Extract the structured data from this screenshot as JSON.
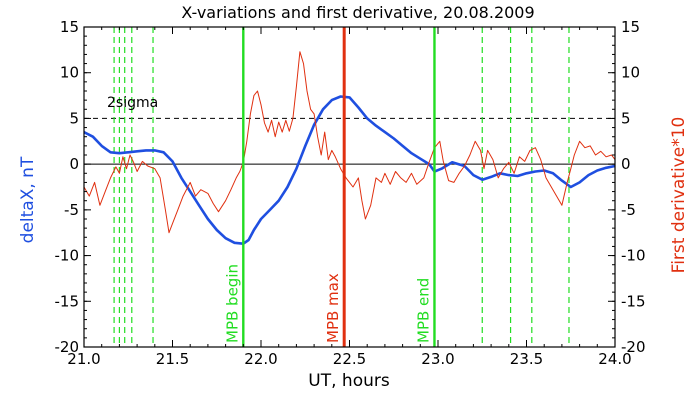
{
  "chart_data": {
    "type": "line",
    "title": "X-variations and first derivative, 20.08.2009",
    "xlabel": "UT, hours",
    "ylabel_left": "deltaX, nT",
    "ylabel_right": "First derivative*10",
    "xlim": [
      21.0,
      24.0
    ],
    "ylim_left": [
      -20,
      15
    ],
    "ylim_right": [
      -20,
      15
    ],
    "x_ticks": [
      "21.0",
      "21.5",
      "22.0",
      "22.5",
      "23.0",
      "23.5",
      "24.0"
    ],
    "y_ticks": [
      "15",
      "10",
      "5",
      "0",
      "-5",
      "-10",
      "-15",
      "-20"
    ],
    "colors": {
      "deltaX": "#1f4fe0",
      "derivative": "#e03010",
      "mpb": "#22dd22",
      "max": "#e03010",
      "axis": "#000000"
    },
    "sigma_label": "2sigma",
    "sigma_level": 5,
    "zero_level": 0,
    "vertical_markers": [
      {
        "x": 21.9,
        "label": "MPB begin",
        "color": "#22dd22"
      },
      {
        "x": 22.47,
        "label": "MPB max",
        "color": "#e03010"
      },
      {
        "x": 22.98,
        "label": "MPB end",
        "color": "#22dd22"
      }
    ],
    "dashed_markers": [
      21.17,
      21.2,
      21.23,
      21.27,
      21.39,
      23.25,
      23.41,
      23.53,
      23.74
    ],
    "series": [
      {
        "name": "deltaX, nT",
        "axis": "left",
        "points": [
          [
            21.0,
            3.5
          ],
          [
            21.05,
            3.0
          ],
          [
            21.1,
            2.0
          ],
          [
            21.15,
            1.3
          ],
          [
            21.2,
            1.2
          ],
          [
            21.25,
            1.3
          ],
          [
            21.3,
            1.4
          ],
          [
            21.35,
            1.5
          ],
          [
            21.4,
            1.5
          ],
          [
            21.45,
            1.3
          ],
          [
            21.5,
            0.3
          ],
          [
            21.55,
            -1.5
          ],
          [
            21.6,
            -3.0
          ],
          [
            21.65,
            -4.5
          ],
          [
            21.7,
            -6.0
          ],
          [
            21.75,
            -7.2
          ],
          [
            21.8,
            -8.1
          ],
          [
            21.85,
            -8.6
          ],
          [
            21.9,
            -8.7
          ],
          [
            21.93,
            -8.3
          ],
          [
            21.96,
            -7.2
          ],
          [
            22.0,
            -6.0
          ],
          [
            22.05,
            -5.0
          ],
          [
            22.1,
            -4.0
          ],
          [
            22.15,
            -2.5
          ],
          [
            22.2,
            -0.5
          ],
          [
            22.25,
            2.0
          ],
          [
            22.3,
            4.3
          ],
          [
            22.35,
            6.0
          ],
          [
            22.4,
            7.0
          ],
          [
            22.45,
            7.4
          ],
          [
            22.5,
            7.3
          ],
          [
            22.55,
            6.2
          ],
          [
            22.6,
            5.0
          ],
          [
            22.65,
            4.2
          ],
          [
            22.7,
            3.5
          ],
          [
            22.75,
            2.8
          ],
          [
            22.8,
            2.0
          ],
          [
            22.85,
            1.2
          ],
          [
            22.9,
            0.6
          ],
          [
            22.95,
            0.0
          ],
          [
            22.98,
            -0.8
          ],
          [
            23.02,
            -0.5
          ],
          [
            23.08,
            0.2
          ],
          [
            23.15,
            -0.2
          ],
          [
            23.2,
            -1.2
          ],
          [
            23.25,
            -1.7
          ],
          [
            23.3,
            -1.4
          ],
          [
            23.35,
            -1.0
          ],
          [
            23.4,
            -1.2
          ],
          [
            23.45,
            -1.3
          ],
          [
            23.5,
            -1.0
          ],
          [
            23.55,
            -0.8
          ],
          [
            23.6,
            -0.7
          ],
          [
            23.65,
            -1.0
          ],
          [
            23.7,
            -1.8
          ],
          [
            23.75,
            -2.5
          ],
          [
            23.8,
            -2.0
          ],
          [
            23.85,
            -1.2
          ],
          [
            23.9,
            -0.7
          ],
          [
            23.95,
            -0.4
          ],
          [
            24.0,
            -0.2
          ]
        ]
      },
      {
        "name": "First derivative*10",
        "axis": "right",
        "points": [
          [
            21.0,
            -2.5
          ],
          [
            21.03,
            -3.5
          ],
          [
            21.06,
            -2.0
          ],
          [
            21.09,
            -4.5
          ],
          [
            21.12,
            -3.0
          ],
          [
            21.15,
            -1.5
          ],
          [
            21.18,
            -0.3
          ],
          [
            21.2,
            -1.0
          ],
          [
            21.22,
            0.8
          ],
          [
            21.24,
            -0.5
          ],
          [
            21.26,
            1.0
          ],
          [
            21.28,
            0.2
          ],
          [
            21.3,
            -0.8
          ],
          [
            21.33,
            0.3
          ],
          [
            21.36,
            -0.2
          ],
          [
            21.4,
            -0.5
          ],
          [
            21.43,
            -1.5
          ],
          [
            21.46,
            -5.0
          ],
          [
            21.48,
            -7.5
          ],
          [
            21.5,
            -6.5
          ],
          [
            21.53,
            -5.0
          ],
          [
            21.56,
            -3.5
          ],
          [
            21.6,
            -2.0
          ],
          [
            21.63,
            -3.5
          ],
          [
            21.66,
            -2.8
          ],
          [
            21.7,
            -3.2
          ],
          [
            21.73,
            -4.3
          ],
          [
            21.76,
            -5.2
          ],
          [
            21.8,
            -4.0
          ],
          [
            21.83,
            -2.8
          ],
          [
            21.86,
            -1.5
          ],
          [
            21.88,
            -0.8
          ],
          [
            21.9,
            0.2
          ],
          [
            21.92,
            2.5
          ],
          [
            21.94,
            5.5
          ],
          [
            21.96,
            7.5
          ],
          [
            21.98,
            8.0
          ],
          [
            22.0,
            6.5
          ],
          [
            22.02,
            4.5
          ],
          [
            22.04,
            3.5
          ],
          [
            22.06,
            4.8
          ],
          [
            22.08,
            3.0
          ],
          [
            22.1,
            4.6
          ],
          [
            22.12,
            3.5
          ],
          [
            22.14,
            4.8
          ],
          [
            22.16,
            3.6
          ],
          [
            22.18,
            5.0
          ],
          [
            22.2,
            8.5
          ],
          [
            22.22,
            12.3
          ],
          [
            22.24,
            11.0
          ],
          [
            22.26,
            8.0
          ],
          [
            22.28,
            6.0
          ],
          [
            22.3,
            5.5
          ],
          [
            22.32,
            3.0
          ],
          [
            22.34,
            1.0
          ],
          [
            22.36,
            3.5
          ],
          [
            22.38,
            0.5
          ],
          [
            22.4,
            1.5
          ],
          [
            22.42,
            0.8
          ],
          [
            22.45,
            -0.5
          ],
          [
            22.48,
            -1.5
          ],
          [
            22.5,
            -2.0
          ],
          [
            22.52,
            -2.5
          ],
          [
            22.55,
            -1.5
          ],
          [
            22.57,
            -4.0
          ],
          [
            22.59,
            -6.0
          ],
          [
            22.62,
            -4.5
          ],
          [
            22.65,
            -1.5
          ],
          [
            22.68,
            -2.0
          ],
          [
            22.7,
            -1.0
          ],
          [
            22.73,
            -2.2
          ],
          [
            22.76,
            -0.8
          ],
          [
            22.79,
            -1.5
          ],
          [
            22.82,
            -2.0
          ],
          [
            22.85,
            -1.0
          ],
          [
            22.88,
            -2.2
          ],
          [
            22.92,
            -1.5
          ],
          [
            22.95,
            0.2
          ],
          [
            22.98,
            1.8
          ],
          [
            23.01,
            2.5
          ],
          [
            23.03,
            0.3
          ],
          [
            23.06,
            -1.8
          ],
          [
            23.09,
            -2.0
          ],
          [
            23.12,
            -1.0
          ],
          [
            23.15,
            -0.2
          ],
          [
            23.18,
            1.0
          ],
          [
            23.21,
            2.5
          ],
          [
            23.24,
            1.5
          ],
          [
            23.26,
            -0.5
          ],
          [
            23.28,
            1.5
          ],
          [
            23.31,
            0.5
          ],
          [
            23.34,
            -1.5
          ],
          [
            23.37,
            -0.5
          ],
          [
            23.4,
            0.2
          ],
          [
            23.43,
            -1.0
          ],
          [
            23.46,
            0.8
          ],
          [
            23.49,
            0.3
          ],
          [
            23.52,
            1.5
          ],
          [
            23.55,
            1.8
          ],
          [
            23.58,
            0.5
          ],
          [
            23.61,
            -1.5
          ],
          [
            23.64,
            -2.5
          ],
          [
            23.67,
            -3.5
          ],
          [
            23.7,
            -4.5
          ],
          [
            23.73,
            -2.0
          ],
          [
            23.75,
            -0.5
          ],
          [
            23.77,
            1.0
          ],
          [
            23.8,
            2.5
          ],
          [
            23.83,
            1.8
          ],
          [
            23.86,
            2.0
          ],
          [
            23.89,
            1.0
          ],
          [
            23.92,
            1.4
          ],
          [
            23.95,
            0.8
          ],
          [
            23.98,
            1.0
          ],
          [
            24.0,
            0.5
          ]
        ]
      }
    ]
  }
}
